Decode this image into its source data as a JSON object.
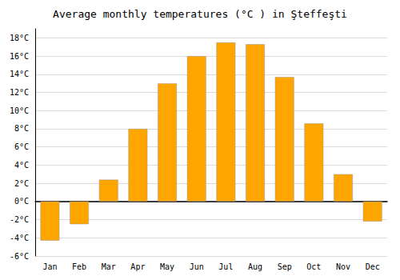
{
  "chart_data": {
    "type": "bar",
    "title": "Average monthly temperatures (°C ) in Şteffeşti",
    "categories": [
      "Jan",
      "Feb",
      "Mar",
      "Apr",
      "May",
      "Jun",
      "Jul",
      "Aug",
      "Sep",
      "Oct",
      "Nov",
      "Dec"
    ],
    "values": [
      -4.3,
      -2.5,
      2.4,
      8.0,
      13.0,
      16.0,
      17.5,
      17.3,
      13.7,
      8.6,
      3.0,
      -2.2
    ],
    "color": "#FFA500",
    "ylim": [
      -6,
      19
    ],
    "yticks": [
      {
        "value": -6,
        "label": "-6°C"
      },
      {
        "value": -4,
        "label": "-4°C"
      },
      {
        "value": -2,
        "label": "-2°C"
      },
      {
        "value": 0,
        "label": "0°C"
      },
      {
        "value": 2,
        "label": "2°C"
      },
      {
        "value": 4,
        "label": "4°C"
      },
      {
        "value": 6,
        "label": "6°C"
      },
      {
        "value": 8,
        "label": "8°C"
      },
      {
        "value": 10,
        "label": "10°C"
      },
      {
        "value": 12,
        "label": "12°C"
      },
      {
        "value": 14,
        "label": "14°C"
      },
      {
        "value": 16,
        "label": "16°C"
      },
      {
        "value": 18,
        "label": "18°C"
      }
    ],
    "grid": true
  }
}
